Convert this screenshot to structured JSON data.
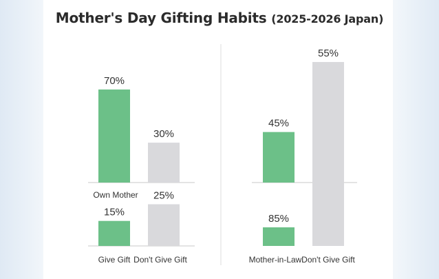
{
  "title": "Mother's Day Gifting Habits",
  "title_suffix": "(2025-2026 Japan)",
  "colors": {
    "green": "#6cc088",
    "gray": "#d9d9dc",
    "axis": "#c8c8c8",
    "divider": "#dcdcdc"
  },
  "chart_data": [
    {
      "type": "bar",
      "categories": [
        "Own Mother",
        ""
      ],
      "values": [
        70,
        30
      ],
      "data_labels": [
        "70%",
        "30%"
      ],
      "ylim": [
        0,
        100
      ]
    },
    {
      "type": "bar",
      "categories": [
        "Give Gift",
        "Don't Give Gift"
      ],
      "values": [
        15,
        25
      ],
      "data_labels": [
        "15%",
        "25%"
      ],
      "ylim": [
        0,
        100
      ]
    },
    {
      "type": "bar",
      "categories": [
        "",
        ""
      ],
      "values": [
        45,
        55
      ],
      "data_labels": [
        "45%",
        "55%"
      ],
      "ylim": [
        0,
        100
      ]
    },
    {
      "type": "bar",
      "categories": [
        "Mother-in-Law",
        "Don't Give Gift"
      ],
      "values": [
        85,
        null
      ],
      "data_labels": [
        "85%",
        ""
      ],
      "ylim": [
        0,
        100
      ]
    }
  ]
}
